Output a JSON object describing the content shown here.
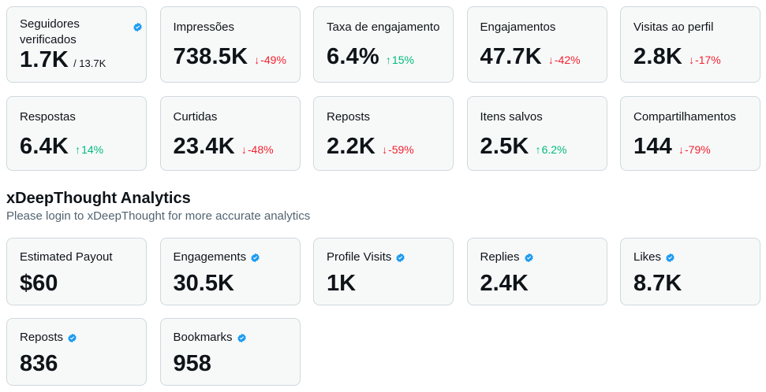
{
  "native_metrics": {
    "row1": [
      {
        "label": "Seguidores verificados",
        "value": "1.7K",
        "sub": "/ 13.7K",
        "verified": true
      },
      {
        "label": "Impressões",
        "value": "738.5K",
        "trend": "-49%",
        "dir": "down"
      },
      {
        "label": "Taxa de engajamento",
        "value": "6.4%",
        "trend": "15%",
        "dir": "up"
      },
      {
        "label": "Engajamentos",
        "value": "47.7K",
        "trend": "-42%",
        "dir": "down"
      },
      {
        "label": "Visitas ao perfil",
        "value": "2.8K",
        "trend": "-17%",
        "dir": "down"
      }
    ],
    "row2": [
      {
        "label": "Respostas",
        "value": "6.4K",
        "trend": "14%",
        "dir": "up"
      },
      {
        "label": "Curtidas",
        "value": "23.4K",
        "trend": "-48%",
        "dir": "down"
      },
      {
        "label": "Reposts",
        "value": "2.2K",
        "trend": "-59%",
        "dir": "down"
      },
      {
        "label": "Itens salvos",
        "value": "2.5K",
        "trend": "6.2%",
        "dir": "up"
      },
      {
        "label": "Compartilhamentos",
        "value": "144",
        "trend": "-79%",
        "dir": "down"
      }
    ]
  },
  "xdeep": {
    "title": "xDeepThought Analytics",
    "subtitle": "Please login to xDeepThought for more accurate analytics",
    "row1": [
      {
        "label": "Estimated Payout",
        "value": "$60",
        "verified": false
      },
      {
        "label": "Engagements",
        "value": "30.5K",
        "verified": true
      },
      {
        "label": "Profile Visits",
        "value": "1K",
        "verified": true
      },
      {
        "label": "Replies",
        "value": "2.4K",
        "verified": true
      },
      {
        "label": "Likes",
        "value": "8.7K",
        "verified": true
      }
    ],
    "row2": [
      {
        "label": "Reposts",
        "value": "836",
        "verified": true
      },
      {
        "label": "Bookmarks",
        "value": "958",
        "verified": true
      }
    ]
  },
  "colors": {
    "down": "#f4212e",
    "up": "#00ba7c",
    "verified": "#1d9bf0"
  },
  "icons": {
    "verified": "verified-badge-icon",
    "up": "arrow-up-icon",
    "down": "arrow-down-icon"
  }
}
